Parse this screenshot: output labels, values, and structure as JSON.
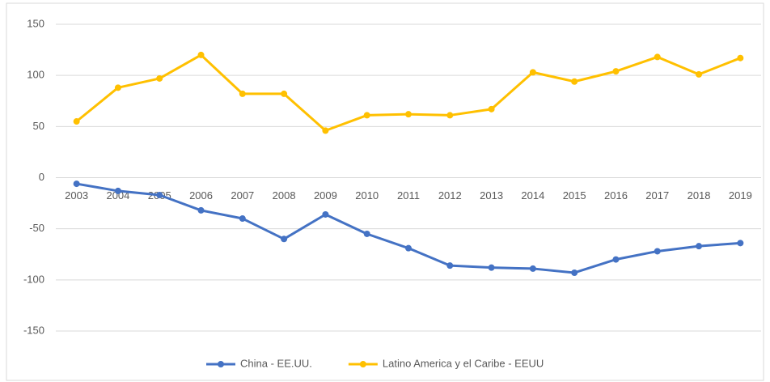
{
  "chart_data": {
    "type": "line",
    "categories": [
      "2003",
      "2004",
      "2005",
      "2006",
      "2007",
      "2008",
      "2009",
      "2010",
      "2011",
      "2012",
      "2013",
      "2014",
      "2015",
      "2016",
      "2017",
      "2018",
      "2019"
    ],
    "series": [
      {
        "name": "China - EE.UU.",
        "color": "#4472c4",
        "values": [
          -6,
          -13,
          -17,
          -32,
          -40,
          -60,
          -36,
          -55,
          -69,
          -86,
          -88,
          -89,
          -93,
          -80,
          -72,
          -67,
          -64
        ]
      },
      {
        "name": "Latino America y el Caribe - EEUU",
        "color": "#ffc000",
        "values": [
          55,
          88,
          97,
          120,
          82,
          82,
          46,
          61,
          62,
          61,
          67,
          103,
          94,
          104,
          118,
          101,
          117
        ]
      }
    ],
    "ylim": [
      -150,
      150
    ],
    "yticks": [
      -150,
      -100,
      -50,
      0,
      50,
      100,
      150
    ],
    "grid": true,
    "legend": "bottom"
  }
}
